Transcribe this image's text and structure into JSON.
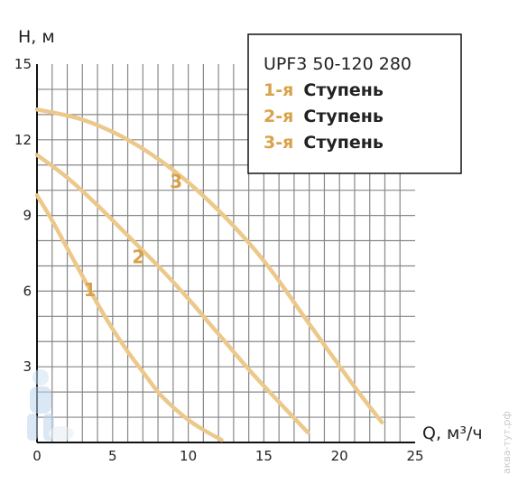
{
  "chart_data": {
    "type": "line",
    "ylabel": "H, м",
    "xlabel": "Q, м³/ч",
    "xlim": [
      0,
      25
    ],
    "ylim": [
      0,
      15
    ],
    "xticks": [
      "0",
      "5",
      "10",
      "15",
      "20",
      "25"
    ],
    "yticks": [
      "3",
      "6",
      "9",
      "12",
      "15"
    ],
    "grid": true,
    "legend": {
      "title": "UPF3 50-120 280",
      "placement": "top-right",
      "items": [
        {
          "num": "1-я",
          "word": "Ступень"
        },
        {
          "num": "2-я",
          "word": "Ступень"
        },
        {
          "num": "3-я",
          "word": "Ступень"
        }
      ]
    },
    "series": [
      {
        "label": "1",
        "x": [
          0,
          1,
          2,
          3,
          4,
          5,
          6,
          7,
          8,
          9,
          10,
          11,
          12.2
        ],
        "y": [
          9.8,
          8.8,
          7.7,
          6.6,
          5.5,
          4.5,
          3.6,
          2.8,
          2.0,
          1.4,
          0.9,
          0.5,
          0.1
        ]
      },
      {
        "label": "2",
        "x": [
          0,
          2,
          4,
          6,
          8,
          10,
          12,
          14,
          16,
          17.9
        ],
        "y": [
          11.4,
          10.5,
          9.4,
          8.2,
          7.0,
          5.7,
          4.3,
          2.9,
          1.6,
          0.4
        ]
      },
      {
        "label": "3",
        "x": [
          0,
          3,
          6,
          9,
          12,
          15,
          18,
          21,
          22.8
        ],
        "y": [
          13.2,
          12.8,
          12.0,
          10.8,
          9.2,
          7.2,
          4.7,
          2.2,
          0.8
        ]
      }
    ],
    "curve_label_positions": [
      {
        "text": "1",
        "x": 3.5,
        "y": 5.8
      },
      {
        "text": "2",
        "x": 6.7,
        "y": 7.1
      },
      {
        "text": "3",
        "x": 9.2,
        "y": 10.1
      }
    ],
    "colors": {
      "curve": "#ecc88a",
      "label": "#d9a24a",
      "grid": "#888888"
    }
  },
  "watermark": "аква-тут.рф"
}
